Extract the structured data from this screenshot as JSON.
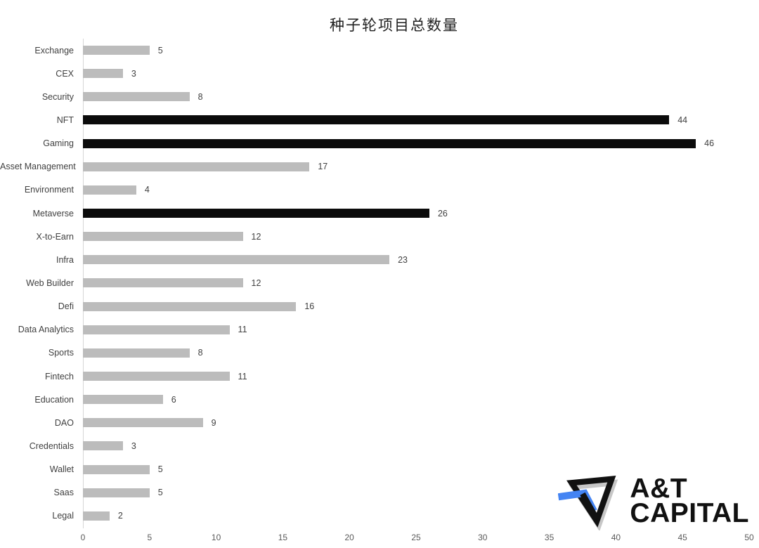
{
  "title": "种子轮项目总数量",
  "chart_data": {
    "type": "bar",
    "orientation": "horizontal",
    "title": "种子轮项目总数量",
    "xlabel": "",
    "ylabel": "",
    "categories": [
      "Exchange",
      "CEX",
      "Security",
      "NFT",
      "Gaming",
      "Asset Management",
      "Environment",
      "Metaverse",
      "X-to-Earn",
      "Infra",
      "Web Builder",
      "Defi",
      "Data Analytics",
      "Sports",
      "Fintech",
      "Education",
      "DAO",
      "Credentials",
      "Wallet",
      "Saas",
      "Legal"
    ],
    "values": [
      5,
      3,
      8,
      44,
      46,
      17,
      4,
      26,
      12,
      23,
      12,
      16,
      11,
      8,
      11,
      6,
      9,
      3,
      5,
      5,
      2
    ],
    "highlight_categories": [
      "NFT",
      "Gaming",
      "Metaverse"
    ],
    "xlim": [
      0,
      50
    ],
    "x_ticks": [
      0,
      5,
      10,
      15,
      20,
      25,
      30,
      35,
      40,
      45,
      50
    ],
    "grid": false,
    "legend": "none",
    "value_labels": true,
    "bar_color": "#bcbcbc",
    "highlight_color": "#0b0b0b",
    "label_color": "#404040",
    "tick_color": "#595959"
  },
  "logo": {
    "line1": "A&T",
    "line2": "CAPITAL",
    "mark_color": "#111111",
    "mark_accent_color": "#4484f3",
    "mark_shadow_color": "#c7c7c7"
  }
}
